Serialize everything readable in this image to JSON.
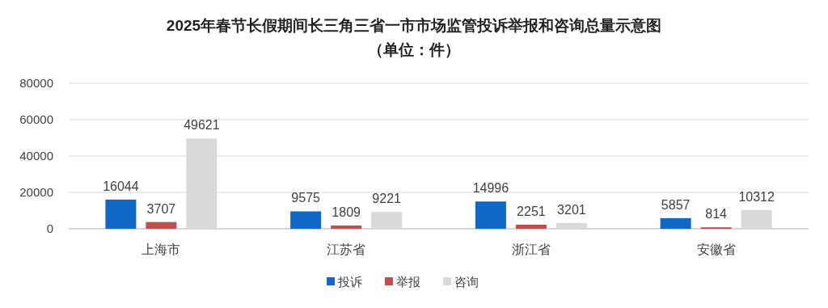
{
  "chart_data": {
    "type": "bar",
    "title": "2025年春节长假期间长三角三省一市市场监管投诉举报和咨询总量示意图",
    "subtitle": "（单位：件）",
    "categories": [
      "上海市",
      "江苏省",
      "浙江省",
      "安徽省"
    ],
    "series": [
      {
        "name": "投诉",
        "color": "#1068c6",
        "values": [
          16044,
          9575,
          14996,
          5857
        ]
      },
      {
        "name": "举报",
        "color": "#c0504d",
        "values": [
          3707,
          1809,
          2251,
          814
        ]
      },
      {
        "name": "咨询",
        "color": "#d9d9d9",
        "values": [
          49621,
          9221,
          3201,
          10312
        ]
      }
    ],
    "ylim": [
      0,
      80000
    ],
    "yticks": [
      0,
      20000,
      40000,
      60000,
      80000
    ],
    "grid": "y",
    "legend": "bottom",
    "data_labels": true
  }
}
